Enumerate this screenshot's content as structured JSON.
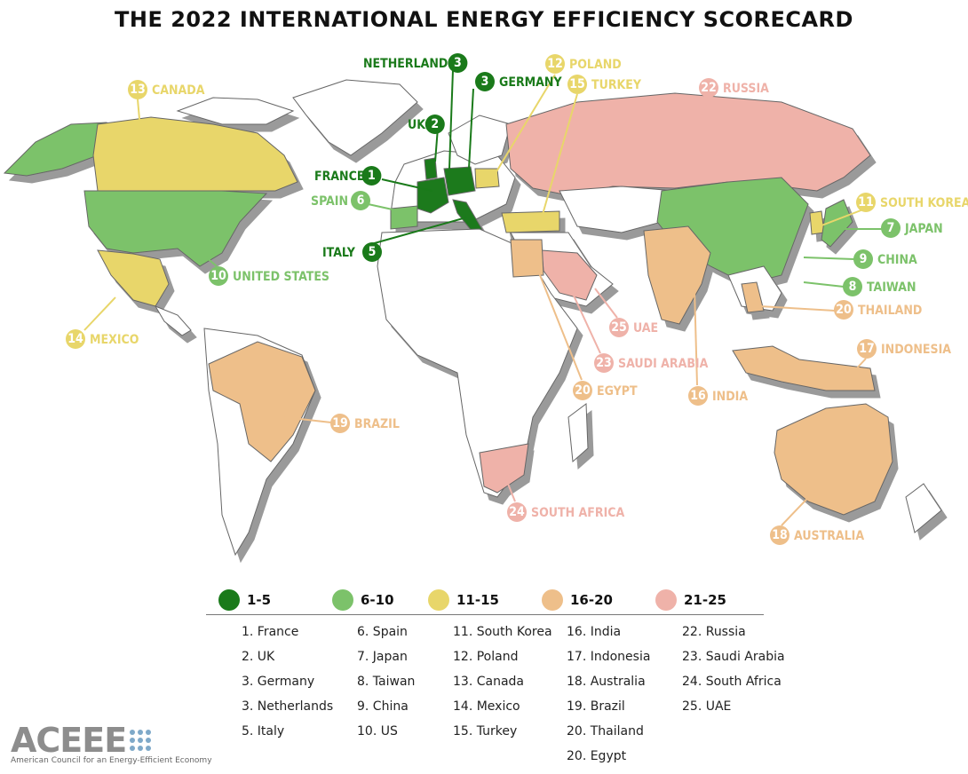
{
  "title": "THE 2022 INTERNATIONAL ENERGY EFFICIENCY SCORECARD",
  "tiers": [
    {
      "range": "1-5",
      "color": "#1a7a1a"
    },
    {
      "range": "6-10",
      "color": "#7cc26a"
    },
    {
      "range": "11-15",
      "color": "#e8d66a"
    },
    {
      "range": "16-20",
      "color": "#eebf8a"
    },
    {
      "range": "21-25",
      "color": "#efb2a9"
    }
  ],
  "ranking_columns": [
    [
      "1. France",
      "2. UK",
      "3. Germany",
      "3. Netherlands",
      "5. Italy"
    ],
    [
      "6. Spain",
      "7. Japan",
      "8. Taiwan",
      "9. China",
      "10. US"
    ],
    [
      "11. South Korea",
      "12. Poland",
      "13. Canada",
      "14. Mexico",
      "15. Turkey"
    ],
    [
      "16. India",
      "17. Indonesia",
      "18. Australia",
      "19. Brazil",
      "20. Thailand",
      "20. Egypt"
    ],
    [
      "22. Russia",
      "23. Saudi Arabia",
      "24. South Africa",
      "25. UAE"
    ]
  ],
  "map_labels": [
    {
      "name": "NETHERLANDS",
      "rank": "3",
      "tier": 0
    },
    {
      "name": "GERMANY",
      "rank": "3",
      "tier": 0
    },
    {
      "name": "UK",
      "rank": "2",
      "tier": 0
    },
    {
      "name": "FRANCE",
      "rank": "1",
      "tier": 0
    },
    {
      "name": "SPAIN",
      "rank": "6",
      "tier": 1
    },
    {
      "name": "ITALY",
      "rank": "5",
      "tier": 0
    },
    {
      "name": "CANADA",
      "rank": "13",
      "tier": 2
    },
    {
      "name": "UNITED STATES",
      "rank": "10",
      "tier": 1
    },
    {
      "name": "MEXICO",
      "rank": "14",
      "tier": 2
    },
    {
      "name": "BRAZIL",
      "rank": "19",
      "tier": 3
    },
    {
      "name": "POLAND",
      "rank": "12",
      "tier": 2
    },
    {
      "name": "TURKEY",
      "rank": "15",
      "tier": 2
    },
    {
      "name": "RUSSIA",
      "rank": "22",
      "tier": 4
    },
    {
      "name": "SOUTH KOREA",
      "rank": "11",
      "tier": 2
    },
    {
      "name": "JAPAN",
      "rank": "7",
      "tier": 1
    },
    {
      "name": "CHINA",
      "rank": "9",
      "tier": 1
    },
    {
      "name": "TAIWAN",
      "rank": "8",
      "tier": 1
    },
    {
      "name": "THAILAND",
      "rank": "20",
      "tier": 3
    },
    {
      "name": "INDONESIA",
      "rank": "17",
      "tier": 3
    },
    {
      "name": "UAE",
      "rank": "25",
      "tier": 4
    },
    {
      "name": "SAUDI ARABIA",
      "rank": "23",
      "tier": 4
    },
    {
      "name": "EGYPT",
      "rank": "20",
      "tier": 3
    },
    {
      "name": "INDIA",
      "rank": "16",
      "tier": 3
    },
    {
      "name": "SOUTH AFRICA",
      "rank": "24",
      "tier": 4
    },
    {
      "name": "AUSTRALIA",
      "rank": "18",
      "tier": 3
    }
  ],
  "logo": {
    "word": "ACEEE",
    "tagline": "American Council for an Energy-Efficient Economy"
  }
}
